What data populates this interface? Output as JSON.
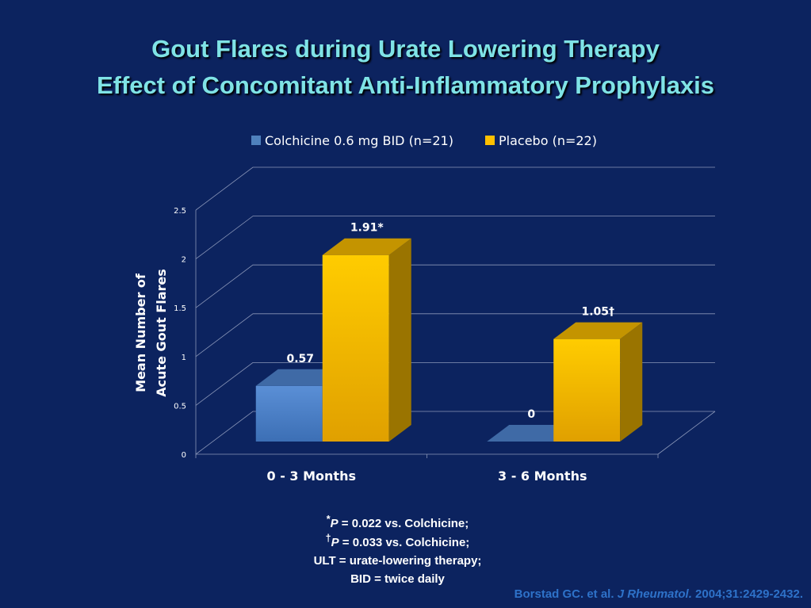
{
  "header": {
    "title_line1": "Gout Flares during Urate Lowering Therapy",
    "title_line2": "Effect of Concomitant Anti-Inflammatory Prophylaxis"
  },
  "colors": {
    "background": "#0c235f",
    "title": "#7fe3e6",
    "colchicine": "#4f81bd",
    "placebo": "#ffc000",
    "citation": "#2e72c9"
  },
  "chart_data": {
    "type": "bar",
    "style": "3d-clustered-column",
    "categories": [
      "0 - 3 Months",
      "3 - 6 Months"
    ],
    "series": [
      {
        "name": "Colchicine 0.6 mg BID (n=21)",
        "values": [
          0.57,
          0
        ],
        "labels": [
          "0.57",
          "0"
        ]
      },
      {
        "name": "Placebo (n=22)",
        "values": [
          1.91,
          1.05
        ],
        "labels": [
          "1.91*",
          "1.05†"
        ]
      }
    ],
    "ylabel": "Mean Number of Acute Gout Flares",
    "ylabel_line1": "Mean Number of",
    "ylabel_line2": "Acute Gout Flares",
    "xlabel": "",
    "ylim": [
      0,
      2.5
    ],
    "yticks": [
      "0",
      "0.5",
      "1",
      "1.5",
      "2",
      "2.5"
    ],
    "grid": true,
    "legend_position": "top"
  },
  "footnotes": {
    "line1_mark": "*",
    "line1_p": "P",
    "line1_rest": " = 0.022 vs. Colchicine;",
    "line2_mark": "†",
    "line2_p": "P",
    "line2_rest": " = 0.033 vs. Colchicine;",
    "line3": "ULT = urate-lowering therapy;",
    "line4": "BID = twice daily"
  },
  "citation": {
    "authors": "Borstad GC. et al. ",
    "journal": "J Rheumatol.",
    "ref": " 2004;31:2429-2432."
  }
}
